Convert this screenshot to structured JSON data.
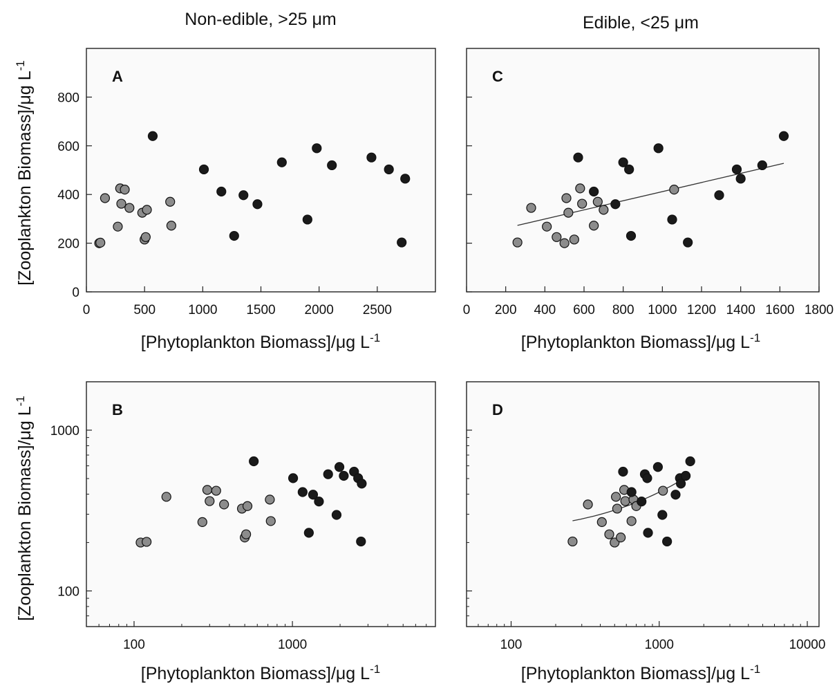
{
  "column_titles": {
    "left_main": "Non-edible, >25 ",
    "left_unit": "μm",
    "right_main": "Edible, <25 ",
    "right_unit": "μm"
  },
  "y_axis_label": {
    "main": "[Zooplankton Biomass]/",
    "unit": "μg L",
    "exp": "-1"
  },
  "x_axis_label": {
    "main": "[Phytoplankton Biomass]/",
    "unit": "μg L",
    "exp": "-1"
  },
  "colors": {
    "black_points": "#1a1a1a",
    "gray_points": "#8c8c8c",
    "fit_line": "#333333",
    "panel_bg": "#fafafa"
  },
  "chart_data": [
    {
      "panel": "A",
      "type": "scatter",
      "xscale": "linear",
      "yscale": "linear",
      "xlim": [
        0,
        3000
      ],
      "ylim": [
        0,
        1000
      ],
      "xticks": [
        0,
        500,
        1000,
        1500,
        2000,
        2500
      ],
      "yticks": [
        0,
        200,
        400,
        600,
        800
      ],
      "xtick_labels": [
        "0",
        "500",
        "1000",
        "1500",
        "2000",
        "2500"
      ],
      "ytick_labels": [
        "0",
        "200",
        "400",
        "600",
        "800"
      ],
      "series": [
        {
          "color": "gray",
          "x": [
            110,
            120,
            160,
            270,
            290,
            300,
            330,
            370,
            480,
            500,
            510,
            520,
            720,
            730
          ],
          "y": [
            200,
            202,
            385,
            268,
            425,
            362,
            420,
            345,
            325,
            215,
            225,
            337,
            370,
            272
          ]
        },
        {
          "color": "black",
          "x": [
            570,
            1010,
            1160,
            1270,
            1350,
            1470,
            1680,
            1900,
            1980,
            2110,
            2450,
            2600,
            2710,
            2740
          ],
          "y": [
            640,
            503,
            412,
            230,
            397,
            360,
            532,
            297,
            590,
            520,
            552,
            503,
            203,
            465
          ]
        }
      ]
    },
    {
      "panel": "B",
      "type": "scatter",
      "xscale": "log",
      "yscale": "log",
      "xlim": [
        50,
        8000
      ],
      "ylim": [
        60,
        2000
      ],
      "xticks": [
        100,
        1000
      ],
      "yticks": [
        100,
        1000
      ],
      "xtick_labels": [
        "100",
        "1000"
      ],
      "ytick_labels": [
        "100",
        "1000"
      ],
      "series": [
        {
          "color": "gray",
          "x": [
            110,
            120,
            160,
            270,
            290,
            300,
            330,
            370,
            480,
            500,
            510,
            520,
            720,
            730
          ],
          "y": [
            200,
            202,
            385,
            268,
            425,
            362,
            420,
            345,
            325,
            215,
            225,
            337,
            370,
            272
          ]
        },
        {
          "color": "black",
          "x": [
            570,
            1010,
            1160,
            1270,
            1350,
            1470,
            1680,
            1900,
            1980,
            2110,
            2450,
            2600,
            2710,
            2740
          ],
          "y": [
            640,
            503,
            412,
            230,
            397,
            360,
            532,
            297,
            590,
            520,
            552,
            503,
            203,
            465
          ]
        }
      ]
    },
    {
      "panel": "C",
      "type": "scatter",
      "xscale": "linear",
      "yscale": "linear",
      "xlim": [
        0,
        1800
      ],
      "ylim": [
        0,
        1000
      ],
      "xticks": [
        0,
        200,
        400,
        600,
        800,
        1000,
        1200,
        1400,
        1600,
        1800
      ],
      "yticks": [
        0,
        200,
        400,
        600,
        800
      ],
      "xtick_labels": [
        "0",
        "200",
        "400",
        "600",
        "800",
        "1000",
        "1200",
        "1400",
        "1600",
        "1800"
      ],
      "ytick_labels": [],
      "series": [
        {
          "color": "gray",
          "x": [
            260,
            330,
            410,
            460,
            500,
            510,
            520,
            550,
            580,
            590,
            650,
            670,
            700,
            1060
          ],
          "y": [
            203,
            345,
            268,
            225,
            200,
            385,
            325,
            215,
            425,
            362,
            272,
            370,
            337,
            420
          ]
        },
        {
          "color": "black",
          "x": [
            570,
            650,
            760,
            800,
            830,
            840,
            980,
            1050,
            1130,
            1290,
            1380,
            1400,
            1510,
            1620
          ],
          "y": [
            552,
            412,
            360,
            532,
            503,
            230,
            590,
            297,
            203,
            397,
            503,
            465,
            520,
            640
          ]
        }
      ],
      "fit_line": {
        "x": [
          260,
          1620
        ],
        "y": [
          273,
          528
        ]
      }
    },
    {
      "panel": "D",
      "type": "scatter",
      "xscale": "log",
      "yscale": "log",
      "xlim": [
        50,
        12000
      ],
      "ylim": [
        60,
        2000
      ],
      "xticks": [
        100,
        1000,
        10000
      ],
      "yticks": [
        100,
        1000
      ],
      "xtick_labels": [
        "100",
        "1000",
        "10000"
      ],
      "ytick_labels": [],
      "series": [
        {
          "color": "gray",
          "x": [
            260,
            330,
            410,
            460,
            500,
            510,
            520,
            550,
            580,
            590,
            650,
            670,
            700,
            1060
          ],
          "y": [
            203,
            345,
            268,
            225,
            200,
            385,
            325,
            215,
            425,
            362,
            272,
            370,
            337,
            420
          ]
        },
        {
          "color": "black",
          "x": [
            570,
            650,
            760,
            800,
            830,
            840,
            980,
            1050,
            1130,
            1290,
            1380,
            1400,
            1510,
            1620
          ],
          "y": [
            552,
            412,
            360,
            532,
            503,
            230,
            590,
            297,
            203,
            397,
            503,
            465,
            520,
            640
          ]
        }
      ],
      "fit_line": {
        "x": [
          260,
          1620
        ],
        "y": [
          273,
          528
        ]
      }
    }
  ]
}
